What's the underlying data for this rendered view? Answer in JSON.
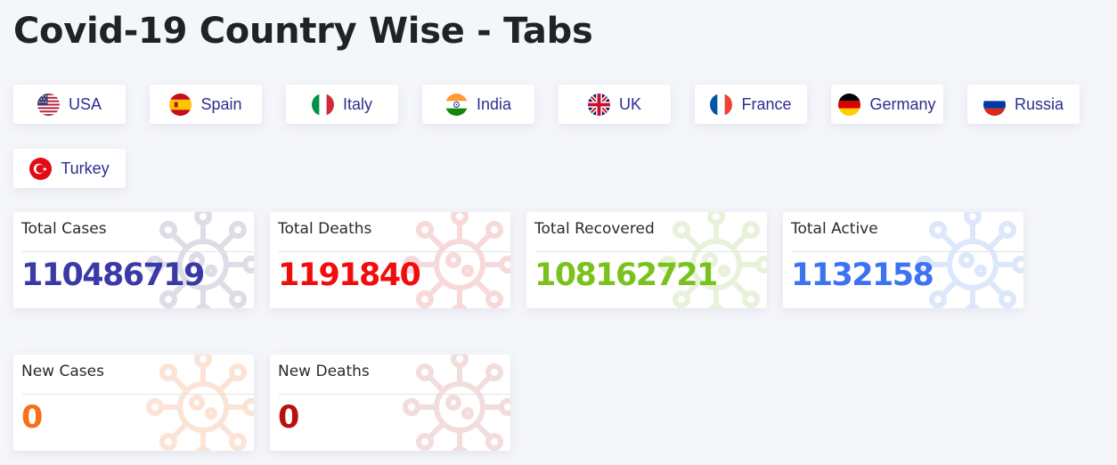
{
  "page": {
    "title": "Covid-19 Country Wise - Tabs"
  },
  "tabs": [
    {
      "label": "USA",
      "flag": "usa-flag-icon"
    },
    {
      "label": "Spain",
      "flag": "spain-flag-icon"
    },
    {
      "label": "Italy",
      "flag": "italy-flag-icon"
    },
    {
      "label": "India",
      "flag": "india-flag-icon"
    },
    {
      "label": "UK",
      "flag": "uk-flag-icon"
    },
    {
      "label": "France",
      "flag": "france-flag-icon"
    },
    {
      "label": "Germany",
      "flag": "germany-flag-icon"
    },
    {
      "label": "Russia",
      "flag": "russia-flag-icon"
    },
    {
      "label": "Turkey",
      "flag": "turkey-flag-icon"
    }
  ],
  "stats": [
    {
      "label": "Total Cases",
      "value": "110486719",
      "color": "#3a3aa7",
      "icon": "virus-icon"
    },
    {
      "label": "Total Deaths",
      "value": "1191840",
      "color": "#f20d0d",
      "icon": "virus-icon"
    },
    {
      "label": "Total Recovered",
      "value": "108162721",
      "color": "#79c21b",
      "icon": "virus-icon"
    },
    {
      "label": "Total Active",
      "value": "1132158",
      "color": "#3d73f0",
      "icon": "virus-icon"
    },
    {
      "label": "New Cases",
      "value": "0",
      "color": "#f7701a",
      "icon": "virus-icon"
    },
    {
      "label": "New Deaths",
      "value": "0",
      "color": "#bb0f0f",
      "icon": "virus-icon"
    }
  ],
  "colors": {
    "background": "#f5f6fa",
    "tab_text": "#2d2f8f",
    "title": "#1f2328"
  }
}
